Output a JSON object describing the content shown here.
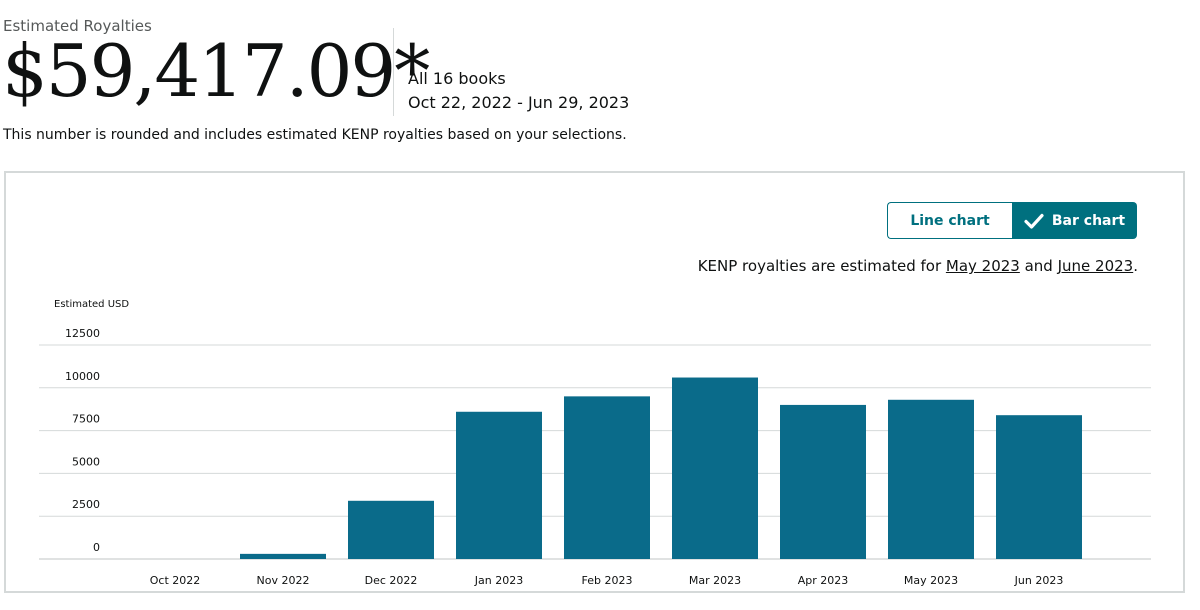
{
  "header": {
    "label": "Estimated Royalties",
    "total": "$59,417.09*",
    "books": "All 16 books",
    "date_range": "Oct 22, 2022 - Jun 29, 2023",
    "note": "This number is rounded and includes estimated KENP royalties based on your selections."
  },
  "toggle": {
    "line_label": "Line chart",
    "bar_label": "Bar chart",
    "selected": "bar",
    "check_icon": "check-icon"
  },
  "kenp_note": {
    "prefix": "KENP royalties are estimated for ",
    "link1": "May 2023",
    "middle": " and ",
    "link2": "June 2023",
    "suffix": "."
  },
  "colors": {
    "accent": "#00707f",
    "bar": "#0a6b8a",
    "grid": "#d5d9d9"
  },
  "chart_data": {
    "type": "bar",
    "ylabel": "Estimated USD",
    "ylim": [
      0,
      12500
    ],
    "yticks": [
      0,
      2500,
      5000,
      7500,
      10000,
      12500
    ],
    "grid": true,
    "categories": [
      "Oct 2022",
      "Nov 2022",
      "Dec 2022",
      "Jan 2023",
      "Feb 2023",
      "Mar 2023",
      "Apr 2023",
      "May 2023",
      "Jun 2023"
    ],
    "values": [
      0,
      300,
      3400,
      8600,
      9500,
      10600,
      9000,
      9300,
      8400
    ]
  }
}
